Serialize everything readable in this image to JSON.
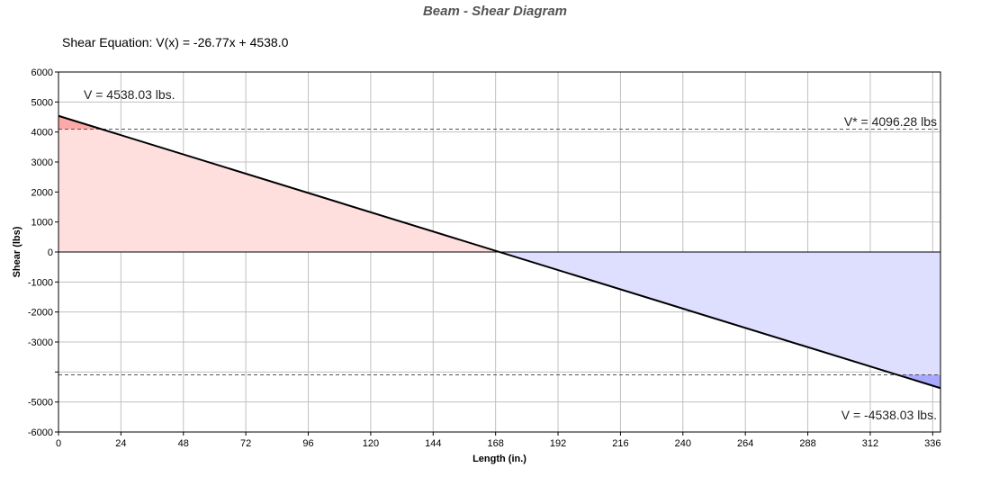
{
  "chart_data": {
    "type": "area",
    "title": "Beam - Shear Diagram",
    "subtitle": "Shear Equation:  V(x) = -26.77x + 4538.0",
    "xlabel": "Length (in.)",
    "ylabel": "Shear (lbs)",
    "xlim": [
      0,
      339
    ],
    "ylim": [
      -6000,
      6000
    ],
    "grid": true,
    "x_ticks": [
      0,
      24,
      48,
      72,
      96,
      120,
      144,
      168,
      192,
      216,
      240,
      264,
      288,
      312,
      336
    ],
    "y_ticks": [
      6000,
      5000,
      4000,
      3000,
      2000,
      1000,
      0,
      -1000,
      -2000,
      -3000,
      -4000,
      -5000,
      -6000
    ],
    "y_tick_labels": [
      "6000",
      "5000",
      "4000",
      "3000",
      "2000",
      "1000",
      "0",
      "-1000",
      "-2000",
      "-3000",
      "",
      "-5000",
      "-6000"
    ],
    "line": {
      "x": [
        0,
        339
      ],
      "y": [
        4538.03,
        -4538.03
      ]
    },
    "allowable_shear": 4096.28,
    "annotations": {
      "max": "V = 4538.03 lbs.",
      "allowable": "V* = 4096.28 lbs",
      "min": "V = -4538.03 lbs."
    },
    "colors": {
      "positive_fill": "#ffdede",
      "positive_exceed": "#ffa8a8",
      "negative_fill": "#dedeff",
      "negative_exceed": "#a8a8ff",
      "line": "#000000",
      "grid": "#c0c0c0"
    }
  }
}
